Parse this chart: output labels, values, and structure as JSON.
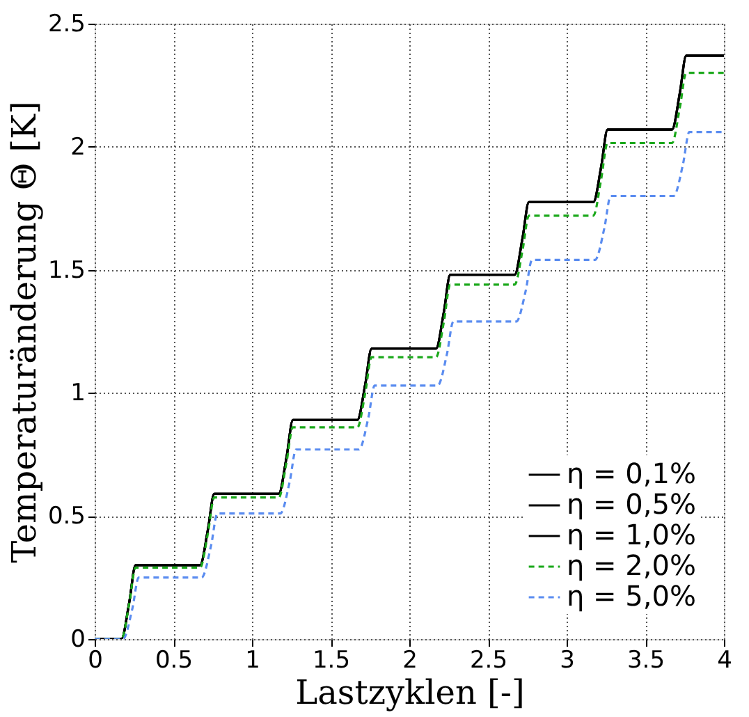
{
  "chart_data": {
    "type": "line",
    "xlabel": "Lastzyklen [-]",
    "ylabel": "Temperaturänderung Θ [K]",
    "xlim": [
      0,
      4
    ],
    "xticks": [
      0,
      0.5,
      1,
      1.5,
      2,
      2.5,
      3,
      3.5,
      4
    ],
    "ylim": [
      0,
      2.5
    ],
    "yticks": [
      0,
      0.5,
      1,
      1.5,
      2,
      2.5
    ],
    "grid": true,
    "legend": "bottom right",
    "series": [
      {
        "name": "η = 0,1%",
        "color": "#000000",
        "line_style": "solid",
        "x": [
          0,
          0.17,
          0.22,
          0.26,
          0.67,
          0.72,
          0.76,
          1.17,
          1.22,
          1.26,
          1.67,
          1.72,
          1.76,
          2.17,
          2.22,
          2.26,
          2.67,
          2.72,
          2.76,
          3.17,
          3.22,
          3.26,
          3.67,
          3.72,
          3.76,
          4
        ],
        "values": [
          0,
          0,
          0.15,
          0.3,
          0.3,
          0.445,
          0.59,
          0.59,
          0.74,
          0.89,
          0.89,
          1.035,
          1.18,
          1.18,
          1.33,
          1.48,
          1.48,
          1.63,
          1.775,
          1.775,
          1.92,
          2.07,
          2.07,
          2.22,
          2.37,
          2.37
        ]
      },
      {
        "name": "η = 0,5%",
        "color": "#000000",
        "line_style": "solid",
        "x": [
          0,
          0.17,
          0.22,
          0.26,
          0.67,
          0.72,
          0.76,
          1.17,
          1.22,
          1.26,
          1.67,
          1.72,
          1.76,
          2.17,
          2.22,
          2.26,
          2.67,
          2.72,
          2.76,
          3.17,
          3.22,
          3.26,
          3.67,
          3.72,
          3.76,
          4
        ],
        "values": [
          0,
          0,
          0.15,
          0.3,
          0.3,
          0.445,
          0.59,
          0.59,
          0.74,
          0.89,
          0.89,
          1.035,
          1.18,
          1.18,
          1.33,
          1.48,
          1.48,
          1.63,
          1.775,
          1.775,
          1.92,
          2.07,
          2.07,
          2.22,
          2.37,
          2.37
        ]
      },
      {
        "name": "η = 1,0%",
        "color": "#000000",
        "line_style": "solid",
        "x": [
          0,
          0.17,
          0.22,
          0.26,
          0.67,
          0.72,
          0.76,
          1.17,
          1.22,
          1.26,
          1.67,
          1.72,
          1.76,
          2.17,
          2.22,
          2.26,
          2.67,
          2.72,
          2.76,
          3.17,
          3.22,
          3.26,
          3.67,
          3.72,
          3.76,
          4
        ],
        "values": [
          0,
          0,
          0.15,
          0.3,
          0.3,
          0.445,
          0.59,
          0.59,
          0.74,
          0.89,
          0.89,
          1.035,
          1.18,
          1.18,
          1.33,
          1.48,
          1.48,
          1.63,
          1.775,
          1.775,
          1.92,
          2.07,
          2.07,
          2.22,
          2.37,
          2.37
        ]
      },
      {
        "name": "η = 2,0%",
        "color": "#1aa81a",
        "line_style": "dashed",
        "x": [
          0,
          0.17,
          0.22,
          0.26,
          0.67,
          0.72,
          0.76,
          1.17,
          1.22,
          1.26,
          1.67,
          1.72,
          1.76,
          2.17,
          2.22,
          2.26,
          2.67,
          2.72,
          2.76,
          3.17,
          3.22,
          3.26,
          3.67,
          3.72,
          3.76,
          4
        ],
        "values": [
          0,
          0,
          0.145,
          0.29,
          0.29,
          0.43,
          0.575,
          0.575,
          0.72,
          0.86,
          0.86,
          1.0,
          1.145,
          1.145,
          1.29,
          1.44,
          1.44,
          1.58,
          1.72,
          1.72,
          1.87,
          2.015,
          2.015,
          2.16,
          2.3,
          2.3
        ]
      },
      {
        "name": "η = 5,0%",
        "color": "#5a8cf0",
        "line_style": "dashed",
        "x": [
          0,
          0.18,
          0.24,
          0.28,
          0.68,
          0.74,
          0.78,
          1.18,
          1.24,
          1.28,
          1.68,
          1.74,
          1.78,
          2.18,
          2.24,
          2.28,
          2.68,
          2.74,
          2.78,
          3.18,
          3.24,
          3.28,
          3.68,
          3.74,
          3.78,
          4
        ],
        "values": [
          0,
          0,
          0.125,
          0.25,
          0.25,
          0.38,
          0.51,
          0.51,
          0.64,
          0.77,
          0.77,
          0.9,
          1.03,
          1.03,
          1.16,
          1.29,
          1.29,
          1.415,
          1.54,
          1.54,
          1.67,
          1.8,
          1.8,
          1.93,
          2.06,
          2.06
        ]
      }
    ]
  }
}
